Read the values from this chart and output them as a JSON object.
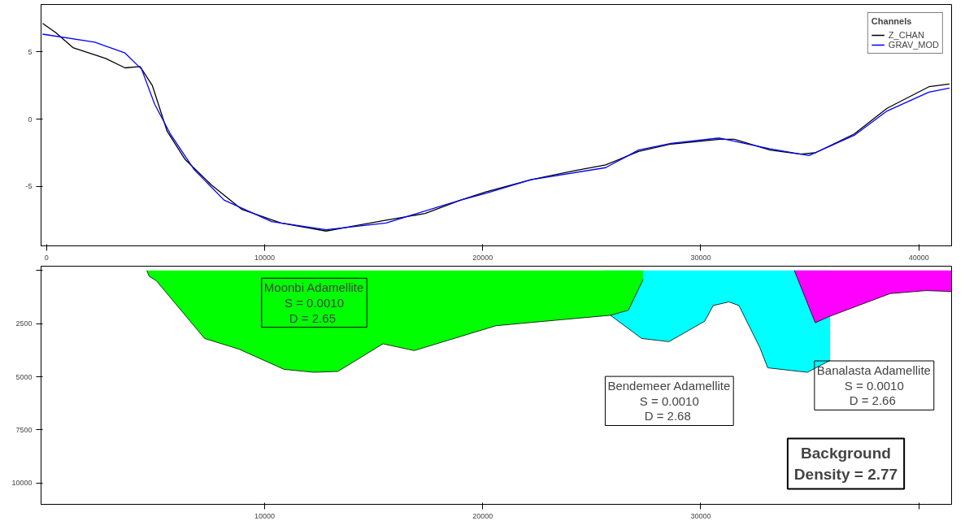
{
  "chart_data": [
    {
      "type": "line",
      "xlim": [
        -250,
        41500
      ],
      "ylim": [
        -9.4,
        8.5
      ],
      "xticks": [
        0,
        10000,
        20000,
        30000,
        40000
      ],
      "yticks": [
        -5,
        0,
        5
      ],
      "grid": false,
      "legend": "top right",
      "legend_title": "Channels",
      "marker": "none",
      "line_style": "solid",
      "series": [
        {
          "name": "Z_CHAN",
          "color": "#000000",
          "x": [
            -180,
            430,
            1210,
            2710,
            3600,
            4290,
            4850,
            5530,
            6360,
            7570,
            8960,
            10750,
            12820,
            14180,
            15570,
            17360,
            19000,
            20140,
            22210,
            24140,
            25640,
            27140,
            28640,
            30860,
            31540,
            33180,
            34570,
            35250,
            37040,
            38540,
            40460,
            41400
          ],
          "values": [
            7.1,
            6.4,
            5.3,
            4.5,
            3.8,
            3.9,
            2.5,
            -0.9,
            -3.0,
            -4.9,
            -6.7,
            -7.7,
            -8.3,
            -7.9,
            -7.5,
            -7.0,
            -6.0,
            -5.4,
            -4.5,
            -3.85,
            -3.4,
            -2.4,
            -1.85,
            -1.5,
            -1.5,
            -2.3,
            -2.6,
            -2.5,
            -1.1,
            0.8,
            2.4,
            2.6
          ]
        },
        {
          "name": "GRAV_MOD",
          "color": "#0000ff",
          "x": [
            -180,
            2210,
            3600,
            4360,
            4960,
            5680,
            6750,
            8140,
            10320,
            12820,
            15570,
            19000,
            20140,
            22210,
            25640,
            27140,
            28640,
            30860,
            33180,
            34960,
            37040,
            38540,
            40460,
            41400
          ],
          "values": [
            6.3,
            5.7,
            4.9,
            3.7,
            1.1,
            -1.1,
            -3.7,
            -6.0,
            -7.6,
            -8.2,
            -7.7,
            -6.0,
            -5.5,
            -4.5,
            -3.6,
            -2.3,
            -1.8,
            -1.4,
            -2.2,
            -2.7,
            -1.2,
            0.6,
            2.0,
            2.3
          ]
        }
      ]
    },
    {
      "type": "area",
      "xlim": [
        -250,
        41500
      ],
      "ylim": [
        11000,
        -200
      ],
      "xticks": [
        10000,
        20000,
        30000,
        {
          "value": 40000,
          "label": null
        }
      ],
      "yticks": [
        {
          "value": 0,
          "label": null
        },
        2500,
        5000,
        7500,
        10000
      ],
      "grid": false,
      "series": [
        {
          "color": "#00ffff",
          "x": [
            25640,
            25860,
            27290,
            28540,
            30180,
            30570,
            31290,
            31750,
            32710,
            33070,
            34890,
            35930
          ],
          "values": [
            0,
            2110,
            3200,
            3350,
            2390,
            1650,
            1480,
            1650,
            3630,
            4580,
            4790,
            4230
          ]
        },
        {
          "color": "#ff00ff",
          "x": [
            34290,
            35250,
            35860,
            38680,
            40320,
            41500
          ],
          "values": [
            0,
            2460,
            2180,
            1090,
            950,
            990
          ]
        },
        {
          "color": "#00ff00",
          "x": [
            4600,
            4710,
            5040,
            7250,
            8820,
            10890,
            12250,
            13360,
            15430,
            16860,
            20610,
            23570,
            25860,
            26680,
            27360
          ],
          "values": [
            0,
            280,
            490,
            3200,
            3700,
            4650,
            4790,
            4750,
            3450,
            3770,
            2600,
            2320,
            2110,
            1870,
            420
          ]
        }
      ],
      "annotations": [
        "Moonbi Adamellite\nS = 0.0010\nD =  2.65",
        "Bendemeer Adamellite\nS = 0.0010\nD =  2.68",
        "Banalasta Adamellite\nS = 0.0010\nD =  2.66",
        "Background\nDensity = 2.77"
      ]
    }
  ]
}
